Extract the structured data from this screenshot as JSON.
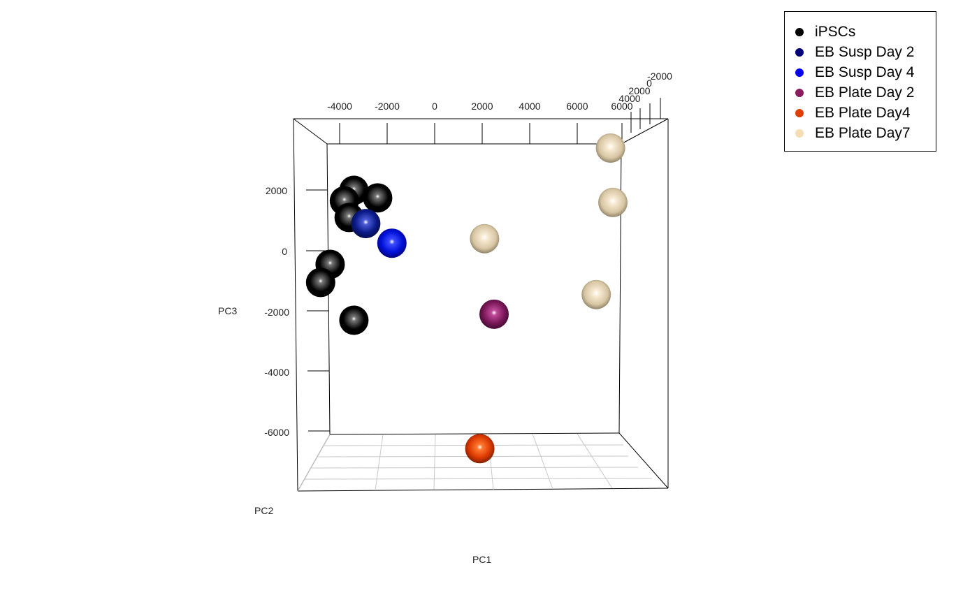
{
  "chart_data": {
    "type": "scatter",
    "dimensions": 3,
    "xlabel": "PC1",
    "ylabel": "PC2",
    "zlabel": "PC3",
    "x_ticks": [
      "-4000",
      "-2000",
      "0",
      "2000",
      "4000",
      "6000",
      "6000"
    ],
    "y_ticks": [
      "-2000",
      "0",
      "2000",
      "4000"
    ],
    "z_ticks": [
      "2000",
      "0",
      "-2000",
      "-4000",
      "-6000"
    ],
    "legend_position": "top-right",
    "series": [
      {
        "name": "iPSCs",
        "color": "#000000",
        "points": [
          {
            "x": -3400,
            "z": 2000
          },
          {
            "x": -2400,
            "z": 1750
          },
          {
            "x": -3800,
            "z": 1650
          },
          {
            "x": -3600,
            "z": 1100
          },
          {
            "x": -4400,
            "z": -450
          },
          {
            "x": -4800,
            "z": -1050
          },
          {
            "x": -3400,
            "z": -2300
          }
        ]
      },
      {
        "name": "EB Susp Day 2",
        "color": "#00007a",
        "points": [
          {
            "x": -2900,
            "z": 900
          }
        ]
      },
      {
        "name": "EB Susp Day 4",
        "color": "#0000ee",
        "points": [
          {
            "x": -1800,
            "z": 250
          }
        ]
      },
      {
        "name": "EB Plate Day 2",
        "color": "#8b1a5e",
        "points": [
          {
            "x": 2500,
            "z": -2100
          }
        ]
      },
      {
        "name": "EB Plate Day4",
        "color": "#e03e00",
        "points": [
          {
            "x": 1900,
            "z": -6550
          }
        ]
      },
      {
        "name": "EB Plate Day7",
        "color": "#f5deb3",
        "points": [
          {
            "x": 2100,
            "z": 400
          },
          {
            "x": 7400,
            "z": 3400
          },
          {
            "x": 7500,
            "z": 1600
          },
          {
            "x": 6800,
            "z": -1450
          }
        ]
      }
    ]
  }
}
